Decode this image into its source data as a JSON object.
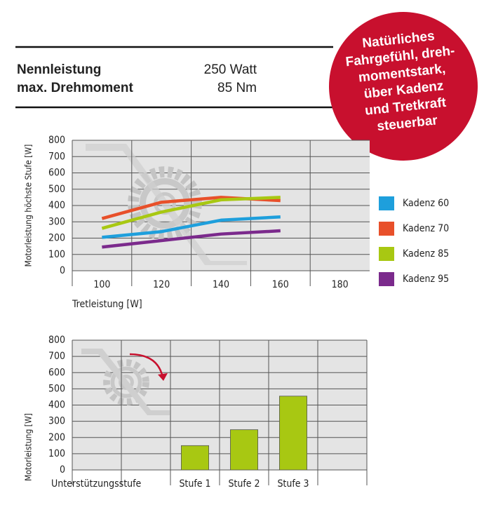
{
  "specs": [
    {
      "label": "Nennleistung",
      "value": "250 Watt"
    },
    {
      "label": "max. Drehmoment",
      "value": "85 Nm"
    }
  ],
  "badge": [
    "Natürliches",
    "Fahrgefühl, dreh-",
    "momentstark,",
    "über Kadenz",
    "und Tretkraft",
    "steuerbar"
  ],
  "chart_data": [
    {
      "type": "line",
      "x_label": "Tretleistung [W]",
      "y_label": "Motorleistung höchste Stufe [W]",
      "x": [
        100,
        120,
        140,
        160
      ],
      "xlim": [
        90,
        190
      ],
      "xticks": [
        100,
        120,
        140,
        160,
        180
      ],
      "ylim": [
        0,
        800
      ],
      "yticks": [
        0,
        100,
        200,
        300,
        400,
        500,
        600,
        700,
        800
      ],
      "grid": true,
      "legend": "right",
      "series": [
        {
          "name": "Kadenz 60",
          "color": "#1e9fdc",
          "values": [
            205,
            240,
            310,
            330
          ]
        },
        {
          "name": "Kadenz 70",
          "color": "#e8502a",
          "values": [
            320,
            420,
            450,
            430
          ]
        },
        {
          "name": "Kadenz 85",
          "color": "#a8c812",
          "values": [
            260,
            360,
            435,
            450
          ]
        },
        {
          "name": "Kadenz 95",
          "color": "#7b2a8c",
          "values": [
            145,
            185,
            225,
            245
          ]
        }
      ]
    },
    {
      "type": "bar",
      "x_label": "Unterstützungsstufe",
      "y_label": "Motorleistung [W]",
      "categories": [
        null,
        null,
        "Stufe 1",
        "Stufe 2",
        "Stufe 3",
        null
      ],
      "values": [
        null,
        null,
        150,
        248,
        455,
        null
      ],
      "color": "#a8c812",
      "ylim": [
        0,
        800
      ],
      "yticks": [
        0,
        100,
        200,
        300,
        400,
        500,
        600,
        700,
        800
      ],
      "grid": true
    }
  ]
}
